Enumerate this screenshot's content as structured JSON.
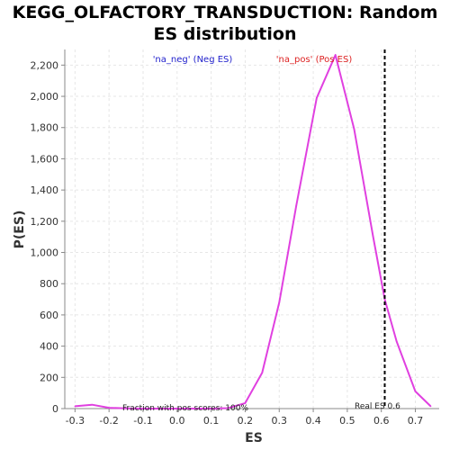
{
  "chart_data": {
    "type": "line",
    "title_line1": "KEGG_OLFACTORY_TRANSDUCTION: Random",
    "title_line2": "ES distribution",
    "xlabel": "ES",
    "ylabel": "P(ES)",
    "xlim": [
      -0.33,
      0.77
    ],
    "ylim": [
      0,
      2300
    ],
    "x_ticks": [
      -0.3,
      -0.2,
      -0.1,
      0.0,
      0.1,
      0.2,
      0.3,
      0.4,
      0.5,
      0.6,
      0.7
    ],
    "x_tick_labels": [
      "-0.3",
      "-0.2",
      "-0.1",
      "0.0",
      "0.1",
      "0.2",
      "0.3",
      "0.4",
      "0.5",
      "0.6",
      "0.7"
    ],
    "y_ticks": [
      0,
      200,
      400,
      600,
      800,
      1000,
      1200,
      1400,
      1600,
      1800,
      2000,
      2200
    ],
    "y_tick_labels": [
      "0",
      "200",
      "400",
      "600",
      "800",
      "1,000",
      "1,200",
      "1,400",
      "1,600",
      "1,800",
      "2,000",
      "2,200"
    ],
    "grid": true,
    "legend": [
      {
        "label": "'na_neg' (Neg ES)",
        "color": "#2222cc"
      },
      {
        "label": "'na_pos' (Pos ES)",
        "color": "#dd2222"
      }
    ],
    "series": [
      {
        "color": "#e040e0",
        "x": [
          -0.3,
          -0.25,
          -0.2,
          -0.15,
          -0.1,
          -0.05,
          0.0,
          0.05,
          0.1,
          0.15,
          0.2,
          0.25,
          0.3,
          0.35,
          0.41,
          0.465,
          0.52,
          0.575,
          0.61,
          0.645,
          0.7,
          0.745
        ],
        "y": [
          15,
          25,
          5,
          2,
          0,
          0,
          0,
          0,
          0,
          3,
          35,
          230,
          680,
          1300,
          1990,
          2265,
          1790,
          1110,
          700,
          430,
          110,
          15
        ]
      }
    ],
    "real_es": {
      "x": 0.61,
      "label": "Real ES 0.6"
    },
    "annotation": "Fraction with pos scores: 100%"
  }
}
